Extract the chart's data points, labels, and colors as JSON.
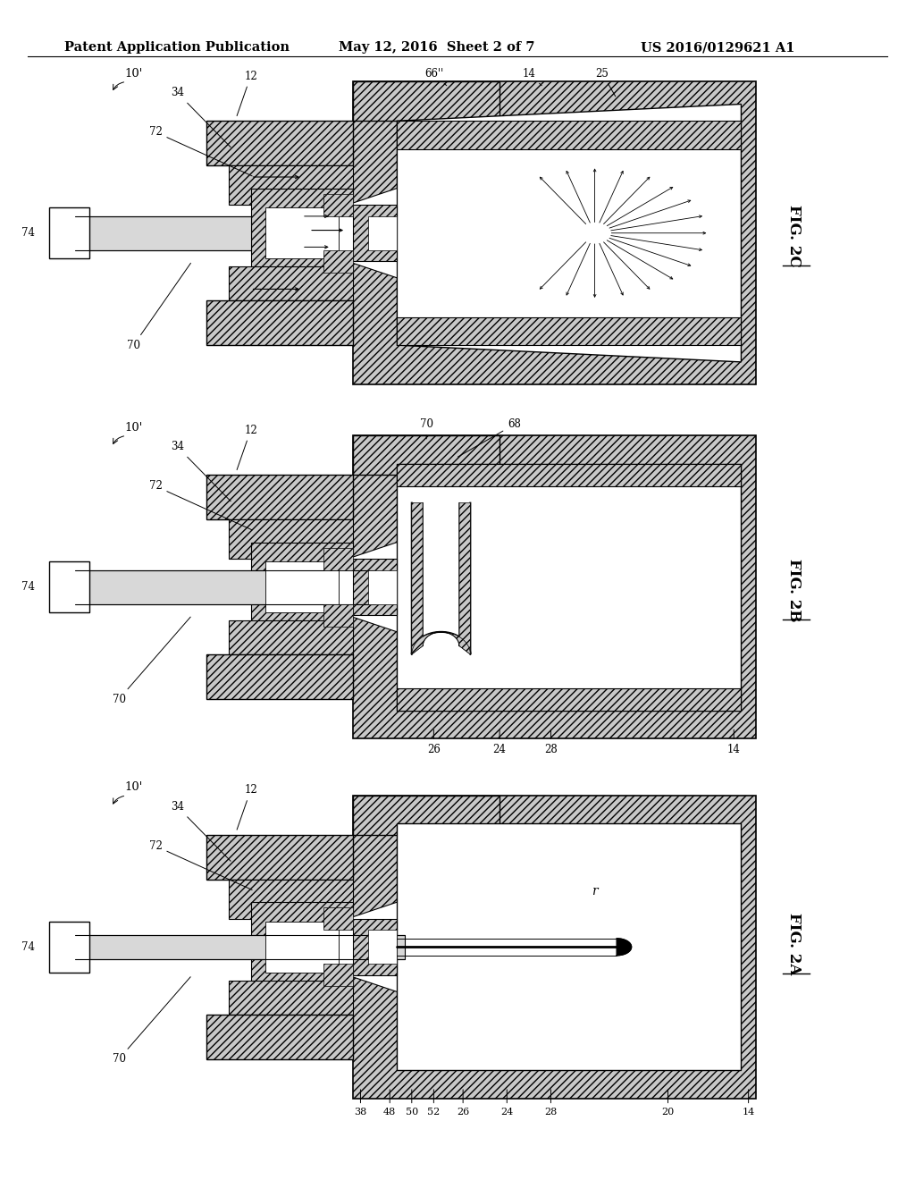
{
  "background_color": "#ffffff",
  "header_left": "Patent Application Publication",
  "header_center": "May 12, 2016  Sheet 2 of 7",
  "header_right": "US 2016/0129621 A1",
  "header_fontsize": 10.5,
  "hatch_face": "#c8c8c8",
  "line_color": "#000000",
  "label_fontsize": 8.5
}
